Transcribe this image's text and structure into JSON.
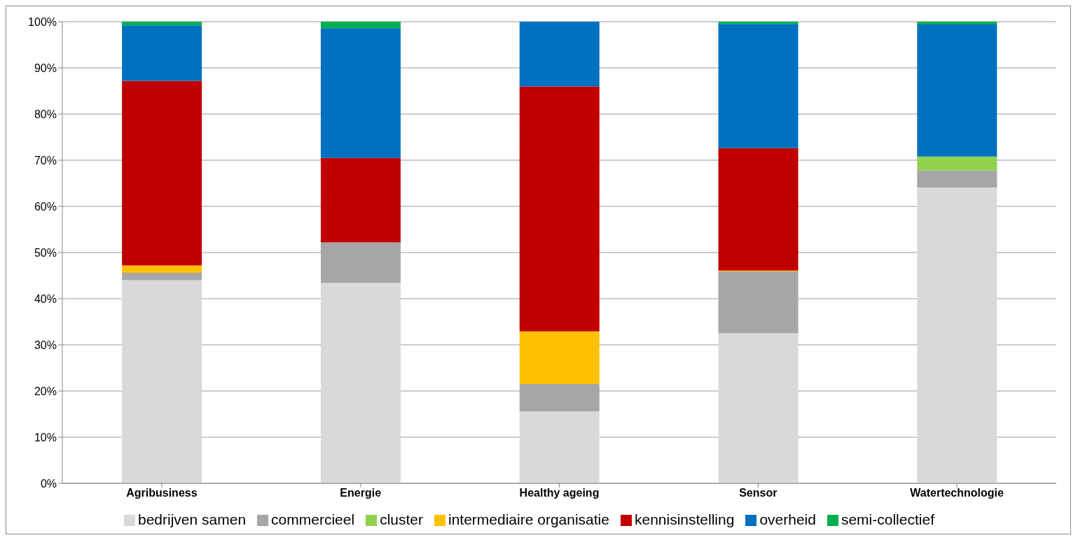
{
  "chart_data": {
    "type": "bar",
    "stacked": true,
    "categories": [
      "Agribusiness",
      "Energie",
      "Healthy ageing",
      "Sensor",
      "Watertechnologie"
    ],
    "series": [
      {
        "name": "bedrijven samen",
        "color": "#d9d9d9",
        "values": [
          44.0,
          43.4,
          15.6,
          32.5,
          64.1
        ]
      },
      {
        "name": "commercieel",
        "color": "#a6a6a6",
        "values": [
          1.6,
          8.8,
          5.9,
          13.4,
          3.7
        ]
      },
      {
        "name": "cluster",
        "color": "#92d050",
        "values": [
          0,
          0,
          0,
          0,
          3.0
        ]
      },
      {
        "name": "intermediaire organisatie",
        "color": "#ffc000",
        "values": [
          1.6,
          0,
          11.4,
          0.2,
          0
        ]
      },
      {
        "name": "kennisinstelling",
        "color": "#c00000",
        "values": [
          40.0,
          18.3,
          53.1,
          26.5,
          0
        ]
      },
      {
        "name": "overheid",
        "color": "#0070c0",
        "values": [
          12.0,
          28.1,
          14.0,
          26.9,
          28.6
        ]
      },
      {
        "name": "semi-collectief",
        "color": "#00b050",
        "values": [
          0.8,
          1.4,
          0,
          0.5,
          0.6
        ]
      }
    ],
    "ylim": [
      0,
      100
    ],
    "yticks": [
      {
        "value": 0,
        "label": "0%"
      },
      {
        "value": 10,
        "label": "10%"
      },
      {
        "value": 20,
        "label": "20%"
      },
      {
        "value": 30,
        "label": "30%"
      },
      {
        "value": 40,
        "label": "40%"
      },
      {
        "value": 50,
        "label": "50%"
      },
      {
        "value": 60,
        "label": "60%"
      },
      {
        "value": 70,
        "label": "70%"
      },
      {
        "value": 80,
        "label": "80%"
      },
      {
        "value": 90,
        "label": "90%"
      },
      {
        "value": 100,
        "label": "100%"
      }
    ],
    "grid": "y",
    "legend": "bottom"
  }
}
